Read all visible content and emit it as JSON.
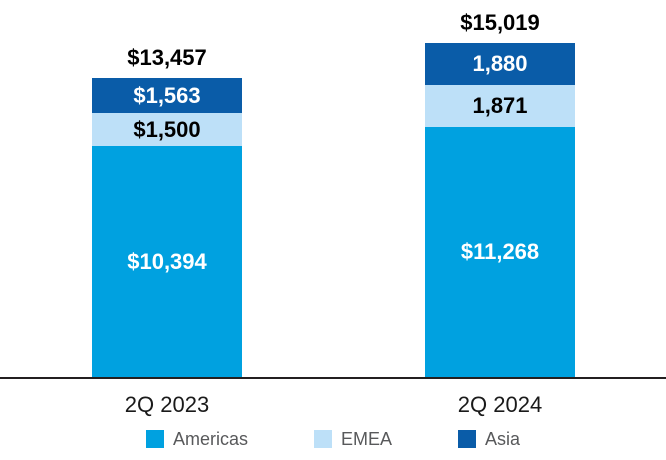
{
  "chart_data": {
    "type": "bar",
    "subtype": "stacked-bar",
    "categories": [
      "2Q 2023",
      "2Q 2024"
    ],
    "series": [
      {
        "name": "Americas",
        "color": "#00A1E0",
        "values": [
          10394,
          11268
        ],
        "labels": [
          "$10,394",
          "$11,268"
        ]
      },
      {
        "name": "EMEA",
        "color": "#BDE0F8",
        "values": [
          1500,
          1871
        ],
        "labels": [
          "$1,500",
          "1,871"
        ]
      },
      {
        "name": "Asia",
        "color": "#0A5CA8",
        "values": [
          1563,
          1880
        ],
        "labels": [
          "$1,563",
          "1,880"
        ]
      }
    ],
    "totals": [
      13457,
      15019
    ],
    "total_labels": [
      "$13,457",
      "$15,019"
    ],
    "legend_position": "bottom",
    "grid": "off",
    "axis": {
      "baseline_color": "#231F20",
      "label_color": "#1a1a1a"
    },
    "legend_text_color": "#58595B",
    "value_label_on_dark_color": "#ffffff",
    "value_label_on_light_color": "#000000"
  }
}
